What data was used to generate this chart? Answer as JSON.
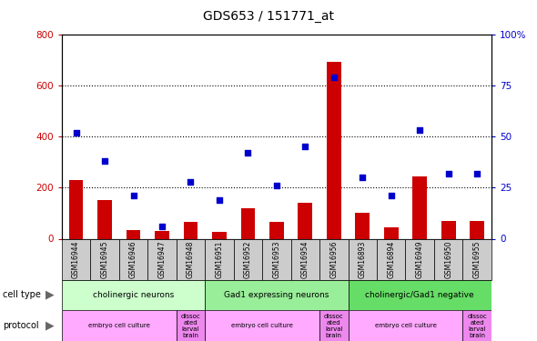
{
  "title": "GDS653 / 151771_at",
  "samples": [
    "GSM16944",
    "GSM16945",
    "GSM16946",
    "GSM16947",
    "GSM16948",
    "GSM16951",
    "GSM16952",
    "GSM16953",
    "GSM16954",
    "GSM16956",
    "GSM16893",
    "GSM16894",
    "GSM16949",
    "GSM16950",
    "GSM16955"
  ],
  "count": [
    230,
    150,
    35,
    30,
    65,
    28,
    120,
    65,
    140,
    690,
    100,
    45,
    245,
    70,
    70
  ],
  "percentile": [
    52,
    38,
    21,
    6,
    28,
    19,
    42,
    26,
    45,
    79,
    30,
    21,
    53,
    32,
    32
  ],
  "ylim_left": [
    0,
    800
  ],
  "ylim_right": [
    0,
    100
  ],
  "yticks_left": [
    0,
    200,
    400,
    600,
    800
  ],
  "yticks_right": [
    0,
    25,
    50,
    75,
    100
  ],
  "cell_type_groups": [
    {
      "label": "cholinergic neurons",
      "start": 0,
      "end": 5,
      "color": "#ccffcc"
    },
    {
      "label": "Gad1 expressing neurons",
      "start": 5,
      "end": 10,
      "color": "#99ee99"
    },
    {
      "label": "cholinergic/Gad1 negative",
      "start": 10,
      "end": 15,
      "color": "#66dd66"
    }
  ],
  "protocol_groups": [
    {
      "label": "embryo cell culture",
      "start": 0,
      "end": 4,
      "color": "#ffaaff"
    },
    {
      "label": "dissoc\nated\nlarval\nbrain",
      "start": 4,
      "end": 5,
      "color": "#ee88ee"
    },
    {
      "label": "embryo cell culture",
      "start": 5,
      "end": 9,
      "color": "#ffaaff"
    },
    {
      "label": "dissoc\nated\nlarval\nbrain",
      "start": 9,
      "end": 10,
      "color": "#ee88ee"
    },
    {
      "label": "embryo cell culture",
      "start": 10,
      "end": 14,
      "color": "#ffaaff"
    },
    {
      "label": "dissoc\nated\nlarval\nbrain",
      "start": 14,
      "end": 15,
      "color": "#ee88ee"
    }
  ],
  "bar_color": "#cc0000",
  "dot_color": "#0000cc",
  "grid_color": "#000000",
  "tick_label_color_left": "#cc0000",
  "tick_label_color_right": "#0000cc",
  "bg_color": "#ffffff",
  "plot_bg": "#ffffff",
  "sample_label_bg": "#cccccc",
  "left_label_color": "#666666"
}
